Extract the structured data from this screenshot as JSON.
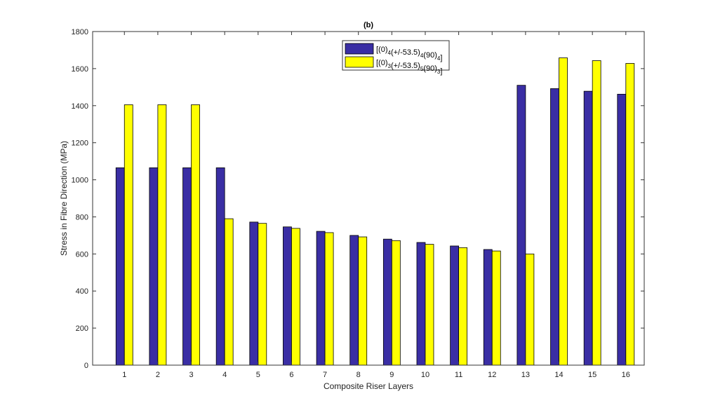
{
  "chart_data": {
    "type": "bar",
    "title": "(b)",
    "xlabel": "Composite Riser Layers",
    "ylabel": "Stress in Fibre Direction (MPa)",
    "ylim": [
      0,
      1800
    ],
    "yticks": [
      0,
      200,
      400,
      600,
      800,
      1000,
      1200,
      1400,
      1600,
      1800
    ],
    "categories": [
      "1",
      "2",
      "3",
      "4",
      "5",
      "6",
      "7",
      "8",
      "9",
      "10",
      "11",
      "12",
      "13",
      "14",
      "15",
      "16"
    ],
    "grid": false,
    "legend_position": "top-center",
    "series": [
      {
        "name": "[(0)4(+/-53.5)4(90)4]",
        "legend_parts": [
          [
            "[(0)",
            ""
          ],
          [
            "4",
            "sub"
          ],
          [
            "(+/-53.5)",
            ""
          ],
          [
            "4",
            "sub"
          ],
          [
            "(90)",
            ""
          ],
          [
            "4",
            "sub"
          ],
          [
            "]",
            ""
          ]
        ],
        "color": "#3a2ea4",
        "values": [
          1065,
          1065,
          1065,
          1065,
          772,
          746,
          722,
          700,
          680,
          662,
          643,
          624,
          1510,
          1492,
          1478,
          1462
        ]
      },
      {
        "name": "[(0)3(+/-53.5)5(90)3]",
        "legend_parts": [
          [
            "[(0)",
            ""
          ],
          [
            "3",
            "sub"
          ],
          [
            "(+/-53.5)",
            ""
          ],
          [
            "5",
            "sub"
          ],
          [
            "(90)",
            ""
          ],
          [
            "3",
            "sub"
          ],
          [
            "]",
            ""
          ]
        ],
        "color": "#ffff00",
        "values": [
          1405,
          1405,
          1405,
          790,
          765,
          738,
          715,
          692,
          672,
          652,
          634,
          616,
          600,
          1658,
          1643,
          1628
        ]
      }
    ]
  }
}
